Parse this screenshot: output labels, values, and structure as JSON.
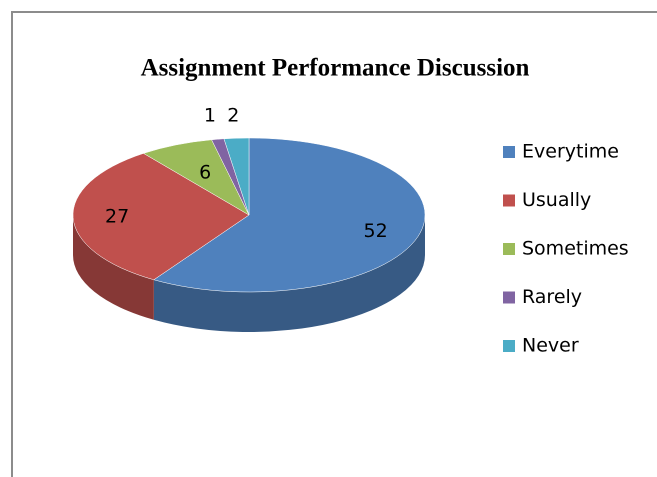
{
  "chart_data": {
    "type": "pie",
    "title": "Assignment Performance Discussion",
    "categories": [
      "Everytime",
      "Usually",
      "Sometimes",
      "Rarely",
      "Never"
    ],
    "values": [
      52,
      27,
      6,
      1,
      2
    ],
    "colors": [
      "#4f81bd",
      "#c0504d",
      "#9bbb59",
      "#8064a2",
      "#4bacc6"
    ],
    "legend": "right"
  }
}
